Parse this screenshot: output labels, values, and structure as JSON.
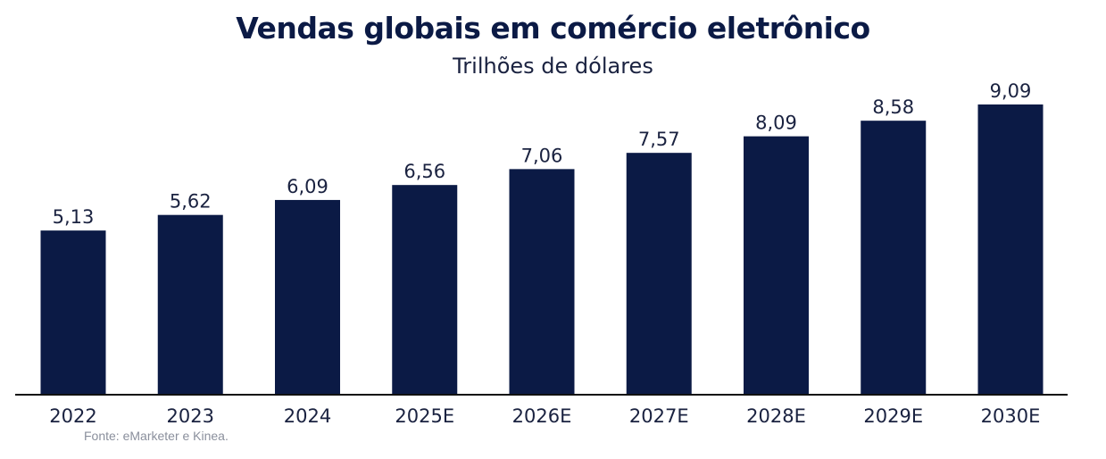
{
  "chart_data": {
    "type": "bar",
    "title": "Vendas globais em comércio eletrônico",
    "subtitle": "Trilhões de dólares",
    "categories": [
      "2022",
      "2023",
      "2024",
      "2025E",
      "2026E",
      "2027E",
      "2028E",
      "2029E",
      "2030E"
    ],
    "values": [
      5.13,
      5.62,
      6.09,
      6.56,
      7.06,
      7.57,
      8.09,
      8.58,
      9.09
    ],
    "value_labels": [
      "5,13",
      "5,62",
      "6,09",
      "6,56",
      "7,06",
      "7,57",
      "8,09",
      "8,58",
      "9,09"
    ],
    "ylim": [
      0,
      9.09
    ],
    "grid": false,
    "legend": "none",
    "bar_color": "#0b1a45"
  },
  "source": "Fonte: eMarketer e Kinea."
}
